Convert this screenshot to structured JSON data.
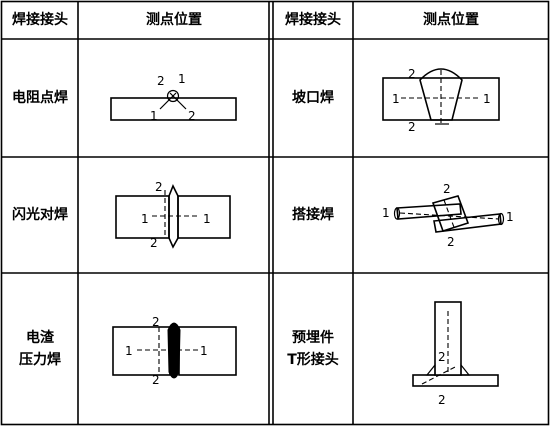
{
  "table": {
    "headers": {
      "left_type": "焊接接头",
      "left_pos": "测点位置",
      "right_type": "焊接接头",
      "right_pos": "测点位置"
    },
    "rows": [
      {
        "left": {
          "line1": "电阻点焊",
          "line2": ""
        },
        "right": {
          "line1": "坡口焊",
          "line2": ""
        }
      },
      {
        "left": {
          "line1": "闪光对焊",
          "line2": ""
        },
        "right": {
          "line1": "搭接焊",
          "line2": ""
        }
      },
      {
        "left": {
          "line1": "电渣",
          "line2": "压力焊"
        },
        "right": {
          "line1": "预埋件",
          "line2": "T形接头"
        }
      }
    ]
  },
  "marks": {
    "one": "1",
    "two": "2"
  }
}
